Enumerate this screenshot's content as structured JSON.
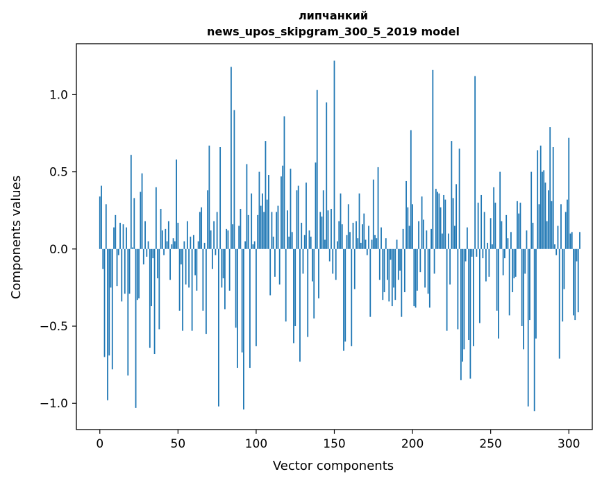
{
  "chart_data": {
    "type": "bar",
    "title_line1": "липчанкий",
    "title_line2": "news_upos_skipgram_300_5_2019 model",
    "xlabel": "Vector components",
    "ylabel": "Components values",
    "xlim": [
      -15,
      315
    ],
    "ylim": [
      -1.17,
      1.33
    ],
    "x_ticks": [
      0,
      50,
      100,
      150,
      200,
      250,
      300
    ],
    "x_tick_labels": [
      "0",
      "50",
      "100",
      "150",
      "200",
      "250",
      "300"
    ],
    "y_ticks": [
      -1.0,
      -0.5,
      0.0,
      0.5,
      1.0
    ],
    "y_tick_labels": [
      "−1.0",
      "−0.5",
      "0.0",
      "0.5",
      "1.0"
    ],
    "bar_color": "#1f77b4",
    "values": [
      0.34,
      0.41,
      -0.13,
      -0.7,
      0.29,
      -0.98,
      -0.69,
      -0.25,
      -0.78,
      0.14,
      0.22,
      -0.24,
      -0.04,
      0.17,
      -0.34,
      0.16,
      -0.29,
      0.14,
      -0.82,
      -0.29,
      0.61,
      0.01,
      0.33,
      -1.03,
      -0.33,
      -0.32,
      0.37,
      0.49,
      -0.1,
      0.18,
      -0.05,
      0.05,
      -0.64,
      -0.37,
      -0.06,
      -0.68,
      0.4,
      -0.19,
      -0.52,
      0.26,
      0.12,
      -0.04,
      0.13,
      0.05,
      0.18,
      -0.2,
      0.03,
      0.07,
      0.05,
      0.58,
      0.17,
      -0.4,
      -0.1,
      -0.53,
      0.05,
      -0.23,
      0.18,
      -0.25,
      0.08,
      -0.53,
      0.09,
      -0.17,
      -0.27,
      0.05,
      0.24,
      0.27,
      -0.4,
      0.04,
      -0.55,
      0.38,
      0.67,
      0.12,
      -0.13,
      0.18,
      -0.04,
      0.24,
      -1.02,
      0.66,
      -0.25,
      -0.19,
      -0.39,
      0.13,
      0.12,
      -0.27,
      1.18,
      0.16,
      0.9,
      -0.51,
      -0.77,
      0.15,
      0.26,
      -0.67,
      -1.04,
      0.05,
      0.55,
      0.22,
      -0.77,
      0.36,
      0.03,
      0.05,
      -0.63,
      0.22,
      0.5,
      0.28,
      0.36,
      0.24,
      0.7,
      0.32,
      0.48,
      -0.3,
      0.24,
      0.08,
      -0.18,
      0.24,
      0.28,
      -0.23,
      0.47,
      0.54,
      0.86,
      -0.47,
      0.25,
      0.08,
      0.52,
      0.11,
      -0.61,
      -0.5,
      0.38,
      0.41,
      -0.73,
      0.17,
      -0.16,
      0.09,
      0.43,
      -0.57,
      0.12,
      0.08,
      -0.21,
      -0.45,
      0.56,
      1.03,
      -0.32,
      0.24,
      0.21,
      0.38,
      0.06,
      0.95,
      0.25,
      -0.08,
      0.26,
      -0.16,
      1.22,
      -0.2,
      0.05,
      0.18,
      0.36,
      0.16,
      -0.66,
      -0.6,
      0.09,
      0.29,
      0.11,
      -0.63,
      0.17,
      -0.26,
      0.18,
      0.07,
      0.36,
      0.04,
      0.16,
      0.23,
      0.06,
      -0.04,
      0.15,
      -0.44,
      0.06,
      0.45,
      0.09,
      0.07,
      0.53,
      -0.2,
      0.14,
      -0.33,
      -0.28,
      0.07,
      -0.2,
      -0.34,
      -0.07,
      -0.37,
      -0.25,
      -0.33,
      0.06,
      -0.2,
      -0.14,
      -0.44,
      0.13,
      -0.28,
      0.44,
      0.27,
      0.15,
      0.77,
      0.29,
      -0.37,
      -0.38,
      -0.27,
      0.18,
      -0.15,
      0.34,
      0.19,
      -0.25,
      0.12,
      -0.29,
      -0.38,
      0.13,
      1.16,
      -0.16,
      0.39,
      0.37,
      0.36,
      0.27,
      0.1,
      0.35,
      0.32,
      -0.53,
      0.1,
      -0.23,
      0.7,
      0.33,
      0.15,
      0.42,
      -0.52,
      0.65,
      -0.85,
      -0.73,
      -0.65,
      -0.08,
      0.14,
      -0.59,
      -0.84,
      -0.05,
      -0.63,
      1.12,
      -0.05,
      0.3,
      -0.48,
      0.35,
      -0.06,
      0.24,
      -0.21,
      0.04,
      -0.18,
      0.2,
      0.03,
      0.4,
      0.3,
      -0.4,
      -0.58,
      0.5,
      0.18,
      -0.17,
      -0.06,
      0.22,
      0.07,
      -0.43,
      0.11,
      -0.28,
      -0.19,
      -0.18,
      0.31,
      0.23,
      0.3,
      -0.5,
      -0.65,
      -0.16,
      0.12,
      -1.02,
      -0.46,
      0.5,
      0.17,
      -1.05,
      -0.58,
      0.64,
      0.29,
      0.67,
      0.5,
      0.51,
      0.43,
      0.18,
      0.38,
      0.79,
      0.31,
      0.66,
      0.03,
      -0.04,
      0.15,
      -0.71,
      0.29,
      -0.47,
      -0.26,
      0.24,
      0.32,
      0.72,
      0.1,
      0.11,
      -0.43,
      -0.46,
      -0.08,
      -0.41,
      0.11
    ]
  }
}
